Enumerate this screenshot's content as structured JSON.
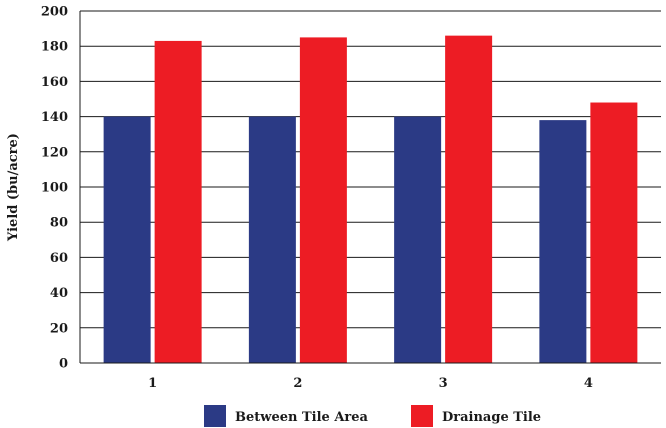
{
  "chart_data": {
    "type": "bar",
    "title": "",
    "xlabel": "",
    "ylabel": "Yield (bu/acre)",
    "categories": [
      "1",
      "2",
      "3",
      "4"
    ],
    "ylim": [
      0,
      200
    ],
    "yticks": [
      "0",
      "20",
      "40",
      "60",
      "80",
      "100",
      "120",
      "140",
      "160",
      "180",
      "200"
    ],
    "grid": true,
    "legend_position": "bottom",
    "series": [
      {
        "name": "Between Tile Area",
        "color": "#2b3a85",
        "values": [
          140,
          140,
          140,
          138
        ]
      },
      {
        "name": "Drainage Tile",
        "color": "#ed1c24",
        "values": [
          183,
          185,
          186,
          148
        ]
      }
    ]
  }
}
